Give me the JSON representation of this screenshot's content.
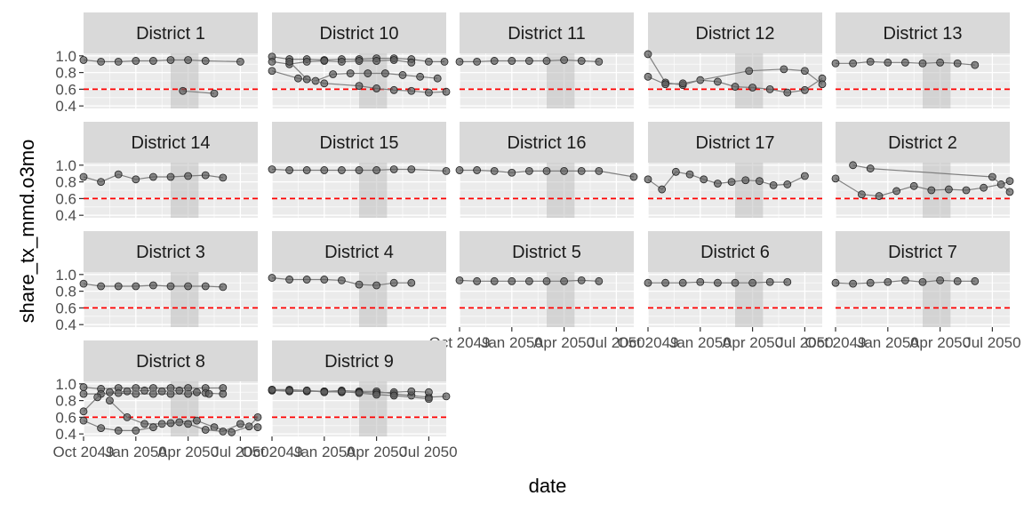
{
  "chart_data": {
    "type": "scatter",
    "xlabel": "date",
    "ylabel": "share_tx_mmd.o3mo",
    "ylim": [
      0.37,
      1.03
    ],
    "y_ticks": [
      0.4,
      0.6,
      0.8,
      1.0
    ],
    "y_tick_labels": [
      "0.4",
      "0.6",
      "0.8",
      "1.0"
    ],
    "x_tick_labels": [
      "Oct 2049",
      "Jan 2050",
      "Apr 2050",
      "Jul 2050"
    ],
    "xlim": [
      0,
      10
    ],
    "x_tick_positions": [
      0,
      3,
      6,
      9
    ],
    "reference_line": {
      "y": 0.6,
      "color": "#ff0000",
      "style": "dashed"
    },
    "shaded_band": {
      "x": [
        5,
        6.6
      ],
      "color": "#bfbfbf"
    },
    "point_color": "#595959",
    "line_color": "#808080",
    "panel_background": "#ebebeb",
    "strip_background": "#d9d9d9",
    "panels": [
      {
        "name": "District 1",
        "series": [
          {
            "x": [
              0,
              1,
              2,
              3,
              4,
              5,
              6,
              7,
              9
            ],
            "y": [
              0.95,
              0.93,
              0.93,
              0.94,
              0.94,
              0.95,
              0.95,
              0.94,
              0.93
            ]
          },
          {
            "x": [
              5.7,
              7.5
            ],
            "y": [
              0.58,
              0.55
            ]
          }
        ]
      },
      {
        "name": "District 10",
        "series": [
          {
            "x": [
              0,
              1,
              2,
              3,
              4,
              5,
              6,
              7,
              8,
              9,
              9.9
            ],
            "y": [
              0.99,
              0.96,
              0.96,
              0.95,
              0.96,
              0.96,
              0.97,
              0.97,
              0.96,
              0.93,
              0.93
            ]
          },
          {
            "x": [
              0,
              1,
              2,
              3,
              4,
              5,
              6,
              7,
              8
            ],
            "y": [
              0.93,
              0.9,
              0.93,
              0.94,
              0.93,
              0.94,
              0.94,
              0.95,
              0.92
            ]
          },
          {
            "x": [
              0,
              1.5,
              2.5,
              3.5,
              4.5,
              5.5,
              6.5,
              7.5,
              8.5,
              9.5
            ],
            "y": [
              0.82,
              0.73,
              0.7,
              0.78,
              0.79,
              0.79,
              0.79,
              0.77,
              0.75,
              0.73
            ]
          },
          {
            "x": [
              1,
              2,
              3,
              5,
              6,
              7,
              8,
              9,
              10
            ],
            "y": [
              0.93,
              0.72,
              0.67,
              0.64,
              0.61,
              0.59,
              0.58,
              0.56,
              0.57
            ]
          }
        ]
      },
      {
        "name": "District 11",
        "series": [
          {
            "x": [
              0,
              1,
              2,
              3,
              4,
              5,
              6,
              7,
              8
            ],
            "y": [
              0.93,
              0.93,
              0.94,
              0.94,
              0.94,
              0.94,
              0.95,
              0.94,
              0.93
            ]
          }
        ]
      },
      {
        "name": "District 12",
        "series": [
          {
            "x": [
              0,
              1,
              2,
              3,
              4,
              5,
              6,
              7,
              8,
              9,
              10
            ],
            "y": [
              1.02,
              0.68,
              0.65,
              0.71,
              0.69,
              0.63,
              0.62,
              0.6,
              0.56,
              0.59,
              0.73
            ]
          },
          {
            "x": [
              0,
              1,
              2,
              5.8,
              7.8,
              9,
              10
            ],
            "y": [
              0.75,
              0.66,
              0.67,
              0.82,
              0.84,
              0.82,
              0.66
            ]
          }
        ]
      },
      {
        "name": "District 13",
        "series": [
          {
            "x": [
              0,
              1,
              2,
              3,
              4,
              5,
              6,
              7,
              8
            ],
            "y": [
              0.91,
              0.91,
              0.93,
              0.92,
              0.92,
              0.91,
              0.92,
              0.91,
              0.89
            ]
          }
        ]
      },
      {
        "name": "District 14",
        "series": [
          {
            "x": [
              0,
              1,
              2,
              3,
              4,
              5,
              6,
              7,
              8
            ],
            "y": [
              0.86,
              0.8,
              0.89,
              0.83,
              0.86,
              0.86,
              0.87,
              0.88,
              0.85
            ]
          }
        ]
      },
      {
        "name": "District 15",
        "series": [
          {
            "x": [
              0,
              1,
              2,
              3,
              4,
              5,
              6,
              7,
              8,
              10
            ],
            "y": [
              0.95,
              0.94,
              0.94,
              0.94,
              0.94,
              0.94,
              0.94,
              0.95,
              0.95,
              0.93
            ]
          }
        ]
      },
      {
        "name": "District 16",
        "series": [
          {
            "x": [
              0,
              1,
              2,
              3,
              4,
              5,
              6,
              7,
              8,
              10
            ],
            "y": [
              0.94,
              0.94,
              0.93,
              0.91,
              0.93,
              0.93,
              0.93,
              0.93,
              0.93,
              0.86
            ]
          }
        ]
      },
      {
        "name": "District 17",
        "series": [
          {
            "x": [
              0,
              0.8,
              1.6,
              2.4,
              3.2,
              4,
              4.8,
              5.6,
              6.4,
              7.2,
              8,
              9
            ],
            "y": [
              0.83,
              0.71,
              0.92,
              0.89,
              0.83,
              0.78,
              0.8,
              0.82,
              0.81,
              0.76,
              0.77,
              0.87
            ]
          }
        ]
      },
      {
        "name": "District 2",
        "series": [
          {
            "x": [
              0,
              1.5,
              2.5,
              3.5,
              4.5,
              5.5,
              6.5,
              7.5,
              8.5,
              9.5,
              10
            ],
            "y": [
              0.84,
              0.65,
              0.63,
              0.69,
              0.75,
              0.7,
              0.71,
              0.7,
              0.73,
              0.77,
              0.81
            ]
          },
          {
            "x": [
              1,
              2,
              9,
              10
            ],
            "y": [
              1.0,
              0.96,
              0.86,
              0.68
            ]
          }
        ]
      },
      {
        "name": "District 3",
        "series": [
          {
            "x": [
              0,
              1,
              2,
              3,
              4,
              5,
              6,
              7,
              8
            ],
            "y": [
              0.89,
              0.86,
              0.86,
              0.86,
              0.87,
              0.86,
              0.86,
              0.86,
              0.85
            ]
          }
        ]
      },
      {
        "name": "District 4",
        "series": [
          {
            "x": [
              0,
              1,
              2,
              3,
              4,
              5,
              6,
              7,
              8
            ],
            "y": [
              0.96,
              0.94,
              0.94,
              0.94,
              0.93,
              0.88,
              0.87,
              0.9,
              0.9
            ]
          }
        ]
      },
      {
        "name": "District 5",
        "series": [
          {
            "x": [
              0,
              1,
              2,
              3,
              4,
              5,
              6,
              7,
              8
            ],
            "y": [
              0.93,
              0.92,
              0.92,
              0.92,
              0.92,
              0.92,
              0.92,
              0.93,
              0.92
            ]
          }
        ]
      },
      {
        "name": "District 6",
        "series": [
          {
            "x": [
              0,
              1,
              2,
              3,
              4,
              5,
              6,
              7,
              8
            ],
            "y": [
              0.9,
              0.9,
              0.9,
              0.91,
              0.9,
              0.9,
              0.9,
              0.91,
              0.91
            ]
          }
        ]
      },
      {
        "name": "District 7",
        "series": [
          {
            "x": [
              0,
              1,
              2,
              3,
              4,
              5,
              6,
              7,
              8
            ],
            "y": [
              0.9,
              0.89,
              0.9,
              0.91,
              0.93,
              0.91,
              0.93,
              0.92,
              0.92
            ]
          }
        ]
      },
      {
        "name": "District 8",
        "series": [
          {
            "x": [
              0,
              1,
              2,
              3,
              4,
              5,
              6,
              7,
              8
            ],
            "y": [
              0.96,
              0.94,
              0.95,
              0.95,
              0.95,
              0.95,
              0.95,
              0.95,
              0.95
            ]
          },
          {
            "x": [
              0,
              1,
              2,
              3,
              4,
              5,
              6,
              7,
              8
            ],
            "y": [
              0.88,
              0.88,
              0.89,
              0.88,
              0.88,
              0.88,
              0.88,
              0.89,
              0.88
            ]
          },
          {
            "x": [
              0,
              0.8,
              1.5,
              2.5,
              3.5,
              4.5,
              5.5,
              6.5,
              7.2
            ],
            "y": [
              0.67,
              0.84,
              0.9,
              0.91,
              0.92,
              0.91,
              0.92,
              0.9,
              0.88
            ]
          },
          {
            "x": [
              1.5,
              2.5,
              3.5,
              4.5,
              5.5,
              6.5,
              7.5,
              8.5,
              9.5,
              10
            ],
            "y": [
              0.8,
              0.6,
              0.52,
              0.52,
              0.54,
              0.56,
              0.48,
              0.42,
              0.49,
              0.6
            ]
          },
          {
            "x": [
              0,
              1,
              2,
              3,
              4,
              5,
              6,
              7,
              8,
              9,
              10
            ],
            "y": [
              0.56,
              0.47,
              0.44,
              0.44,
              0.48,
              0.53,
              0.52,
              0.45,
              0.43,
              0.52,
              0.48
            ]
          }
        ]
      },
      {
        "name": "District 9",
        "series": [
          {
            "x": [
              0,
              1,
              2,
              3,
              4,
              5,
              6,
              7,
              8,
              9,
              10
            ],
            "y": [
              0.93,
              0.93,
              0.92,
              0.91,
              0.92,
              0.91,
              0.91,
              0.88,
              0.86,
              0.84,
              0.85
            ]
          },
          {
            "x": [
              0,
              1,
              2,
              3,
              4,
              5,
              6,
              7,
              8,
              9
            ],
            "y": [
              0.92,
              0.91,
              0.91,
              0.91,
              0.9,
              0.9,
              0.89,
              0.9,
              0.91,
              0.9
            ]
          },
          {
            "x": [
              0,
              1,
              2,
              3,
              4,
              5,
              6,
              7,
              9
            ],
            "y": [
              0.93,
              0.92,
              0.92,
              0.9,
              0.91,
              0.89,
              0.87,
              0.86,
              0.82
            ]
          }
        ]
      }
    ]
  }
}
